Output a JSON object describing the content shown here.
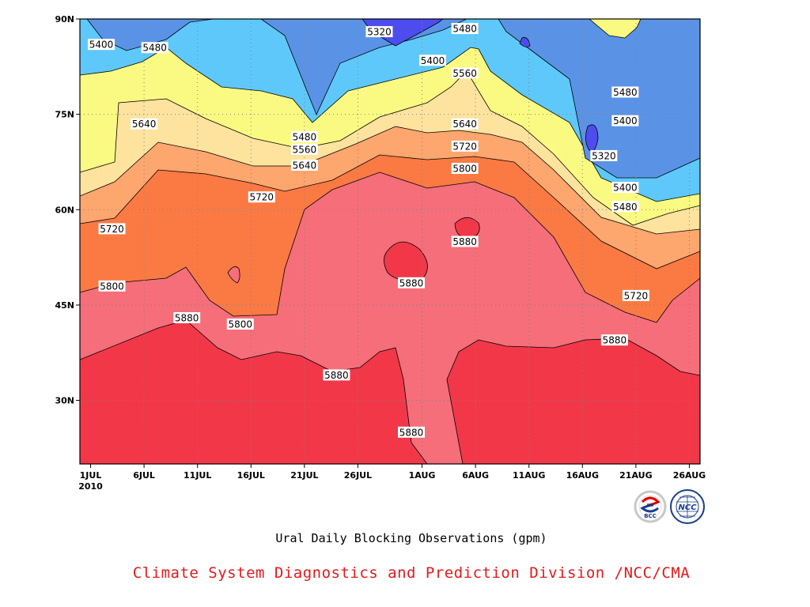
{
  "chart_data": {
    "type": "heatmap",
    "subtype": "filled-contour",
    "title": "Ural Daily Blocking Observations (gpm)",
    "credit": "Climate System Diagnostics and Prediction Division /NCC/CMA",
    "x_tick_labels": [
      "1JUL",
      "6JUL",
      "11JUL",
      "16JUL",
      "21JUL",
      "26JUL",
      "1AUG",
      "6AUG",
      "11AUG",
      "16AUG",
      "21AUG",
      "26AUG"
    ],
    "x_year_label": "2010",
    "y_tick_labels": [
      "30N",
      "45N",
      "60N",
      "75N",
      "90N"
    ],
    "xlim": [
      "2010-06-30",
      "2010-08-27"
    ],
    "ylim": [
      20,
      90
    ],
    "grid": true,
    "contour_levels": [
      5320,
      5400,
      5480,
      5560,
      5640,
      5720,
      5800,
      5880
    ],
    "bands": [
      {
        "min": null,
        "max": 5320,
        "color": "#4d4def"
      },
      {
        "min": 5320,
        "max": 5400,
        "color": "#5a93e6"
      },
      {
        "min": 5400,
        "max": 5480,
        "color": "#5fc8fa"
      },
      {
        "min": 5480,
        "max": 5560,
        "color": "#fafa82"
      },
      {
        "min": 5560,
        "max": 5640,
        "color": "#fde39e"
      },
      {
        "min": 5640,
        "max": 5720,
        "color": "#fda66e"
      },
      {
        "min": 5720,
        "max": 5800,
        "color": "#fb7a44"
      },
      {
        "min": 5800,
        "max": 5880,
        "color": "#f56e7a"
      },
      {
        "min": 5880,
        "max": null,
        "color": "#f23848"
      }
    ],
    "contour_labels": [
      {
        "text": "5400",
        "date": "2010-07-02",
        "lat": 86
      },
      {
        "text": "5480",
        "date": "2010-07-07",
        "lat": 85.5
      },
      {
        "text": "5320",
        "date": "2010-07-28",
        "lat": 88
      },
      {
        "text": "5480",
        "date": "2010-08-05",
        "lat": 88.5
      },
      {
        "text": "5400",
        "date": "2010-08-02",
        "lat": 83.5
      },
      {
        "text": "5560",
        "date": "2010-08-05",
        "lat": 81.5
      },
      {
        "text": "5480",
        "date": "2010-08-20",
        "lat": 78.5
      },
      {
        "text": "5400",
        "date": "2010-08-20",
        "lat": 74
      },
      {
        "text": "5320",
        "date": "2010-08-18",
        "lat": 68.5
      },
      {
        "text": "5400",
        "date": "2010-08-20",
        "lat": 63.5
      },
      {
        "text": "5480",
        "date": "2010-08-20",
        "lat": 60.5
      },
      {
        "text": "5640",
        "date": "2010-07-06",
        "lat": 73.5
      },
      {
        "text": "5480",
        "date": "2010-07-21",
        "lat": 71.5
      },
      {
        "text": "5560",
        "date": "2010-07-21",
        "lat": 69.5
      },
      {
        "text": "5640",
        "date": "2010-07-21",
        "lat": 67
      },
      {
        "text": "5640",
        "date": "2010-08-05",
        "lat": 73.5
      },
      {
        "text": "5720",
        "date": "2010-08-05",
        "lat": 70
      },
      {
        "text": "5800",
        "date": "2010-08-05",
        "lat": 66.5
      },
      {
        "text": "5720",
        "date": "2010-07-17",
        "lat": 62
      },
      {
        "text": "5720",
        "date": "2010-07-03",
        "lat": 57
      },
      {
        "text": "5880",
        "date": "2010-08-05",
        "lat": 55
      },
      {
        "text": "5880",
        "date": "2010-07-31",
        "lat": 48.5
      },
      {
        "text": "5800",
        "date": "2010-07-03",
        "lat": 48
      },
      {
        "text": "5880",
        "date": "2010-07-10",
        "lat": 43
      },
      {
        "text": "5800",
        "date": "2010-07-15",
        "lat": 42
      },
      {
        "text": "5720",
        "date": "2010-08-21",
        "lat": 46.5
      },
      {
        "text": "5880",
        "date": "2010-08-19",
        "lat": 39.5
      },
      {
        "text": "5880",
        "date": "2010-07-24",
        "lat": 34
      },
      {
        "text": "5880",
        "date": "2010-07-31",
        "lat": 25
      }
    ]
  },
  "logos": {
    "bcc": {
      "text": "BCC",
      "ring_color": "#c0c0c0",
      "accent_red": "#e00000",
      "accent_blue": "#1a3d8c"
    },
    "ncc": {
      "text": "NCC",
      "color": "#1a3d8c"
    }
  },
  "colors": {
    "credit_text": "#e31a1c",
    "contour_line": "#000000"
  }
}
